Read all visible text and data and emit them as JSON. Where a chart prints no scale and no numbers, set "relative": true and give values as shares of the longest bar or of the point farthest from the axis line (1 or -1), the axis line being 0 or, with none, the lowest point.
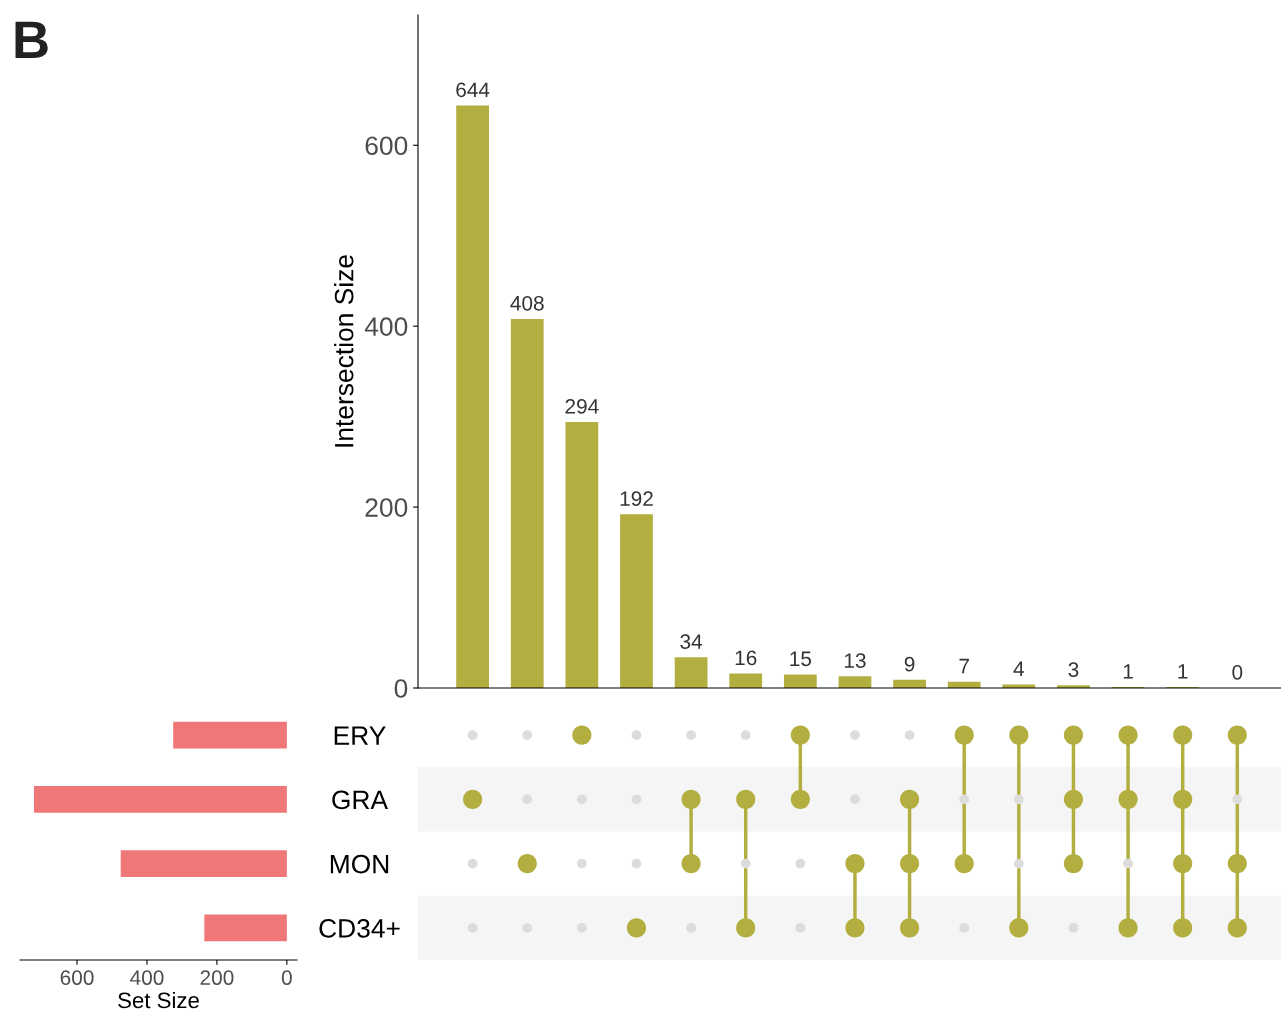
{
  "chart_data": [
    {
      "type": "bar",
      "ylabel": "Intersection Size",
      "categories": [
        null,
        null,
        null,
        null,
        null,
        null,
        null,
        null,
        null,
        null,
        null,
        null,
        null,
        null,
        null
      ],
      "values": [
        644,
        408,
        294,
        192,
        34,
        16,
        15,
        13,
        9,
        7,
        4,
        3,
        1,
        1,
        0
      ],
      "color": "#b2ae40",
      "ylim": [
        0,
        744
      ],
      "yticks": [
        0,
        200,
        400,
        600
      ],
      "data_labels": true,
      "grid": false,
      "tick_labels": "y",
      "annotations": [
        "B"
      ]
    },
    {
      "type": "bar",
      "orientation": "horizontal",
      "xlabel": "Set Size",
      "categories": [
        "ERY",
        "GRA",
        "MON",
        "CD34+"
      ],
      "values": [
        325,
        723,
        475,
        236
      ],
      "color": "#ef7777",
      "xlim": [
        763,
        -29
      ],
      "xticks": [
        600,
        400,
        200,
        0
      ],
      "grid": false
    },
    {
      "type": "heatmap",
      "categories": [
        null,
        null,
        null,
        null,
        null,
        null,
        null,
        null,
        null,
        null,
        null,
        null,
        null,
        null,
        null
      ],
      "y_categories": [
        null,
        null,
        null,
        null
      ],
      "color": "#b2ae40",
      "relative": true,
      "cells": [
        [
          false,
          false,
          true,
          false,
          false,
          false,
          true,
          false,
          false,
          true,
          true,
          true,
          true,
          true,
          true
        ],
        [
          true,
          false,
          false,
          false,
          true,
          true,
          true,
          false,
          true,
          false,
          false,
          true,
          true,
          true,
          false
        ],
        [
          false,
          true,
          false,
          false,
          true,
          false,
          false,
          true,
          true,
          true,
          false,
          true,
          false,
          true,
          true
        ],
        [
          false,
          false,
          false,
          true,
          false,
          true,
          false,
          true,
          true,
          false,
          true,
          false,
          true,
          true,
          true
        ]
      ],
      "tick_labels": false
    }
  ]
}
